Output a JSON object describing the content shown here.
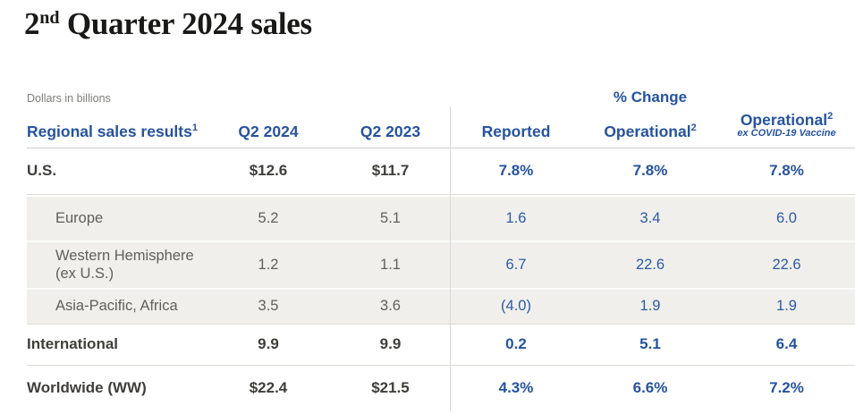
{
  "title": {
    "number": "2",
    "ordinal": "nd",
    "rest": " Quarter 2024 sales"
  },
  "colors": {
    "accent_blue": "#26539f",
    "dark_text": "#3f3e3b",
    "sub_text": "#605f5b",
    "sub_row_bg": "#f0efec"
  },
  "table": {
    "note": "Dollars in billions",
    "group_header": "% Change",
    "columns": {
      "region": {
        "label": "Regional sales results",
        "sup": "1"
      },
      "q2_2024": {
        "label": "Q2 2024"
      },
      "q2_2023": {
        "label": "Q2 2023"
      },
      "reported": {
        "label": "Reported"
      },
      "operational": {
        "label": "Operational",
        "sup": "2"
      },
      "operational_ex_covid": {
        "label": "Operational",
        "sup": "2",
        "sublabel": "ex COVID-19 Vaccine"
      }
    },
    "rows": [
      {
        "region": "U.S.",
        "q2_2024": "$12.6",
        "q2_2023": "$11.7",
        "reported": "7.8%",
        "operational": "7.8%",
        "operational_ex_covid": "7.8%",
        "emphasis": "primary"
      },
      {
        "region": "Europe",
        "q2_2024": "5.2",
        "q2_2023": "5.1",
        "reported": "1.6",
        "operational": "3.4",
        "operational_ex_covid": "6.0",
        "emphasis": "sub"
      },
      {
        "region": "Western Hemisphere (ex U.S.)",
        "q2_2024": "1.2",
        "q2_2023": "1.1",
        "reported": "6.7",
        "operational": "22.6",
        "operational_ex_covid": "22.6",
        "emphasis": "sub"
      },
      {
        "region": "Asia-Pacific, Africa",
        "q2_2024": "3.5",
        "q2_2023": "3.6",
        "reported": "(4.0)",
        "operational": "1.9",
        "operational_ex_covid": "1.9",
        "emphasis": "sub"
      },
      {
        "region": "International",
        "q2_2024": "9.9",
        "q2_2023": "9.9",
        "reported": "0.2",
        "operational": "5.1",
        "operational_ex_covid": "6.4",
        "emphasis": "primary"
      },
      {
        "region": "Worldwide (WW)",
        "q2_2024": "$22.4",
        "q2_2023": "$21.5",
        "reported": "4.3%",
        "operational": "6.6%",
        "operational_ex_covid": "7.2%",
        "emphasis": "primary"
      }
    ]
  }
}
